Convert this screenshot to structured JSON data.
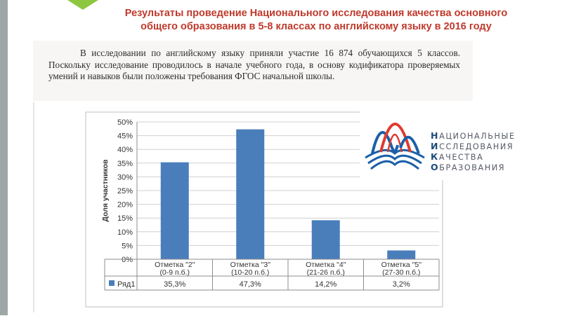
{
  "slide": {
    "title_line1": "Результаты проведение Национального исследования качества основного",
    "title_line2": "общего образования в 5-8 классах по английскому языку в 2016 году",
    "accent_color": "#c0392b",
    "scan_text": "В исследовании по английскому языку приняли участие 16 874 обучающихся 5 классов. Поскольку исследование проводилось в начале учебного года, в основу кодификатора проверяемых умений и навыков были положены требования ФГОС начальной школы."
  },
  "logo": {
    "lines": [
      {
        "cap": "Н",
        "rest": "АЦИОНАЛЬНЫЕ"
      },
      {
        "cap": "И",
        "rest": "ССЛЕДОВАНИЯ"
      },
      {
        "cap": "К",
        "rest": "АЧЕСТВА"
      },
      {
        "cap": "О",
        "rest": "БРАЗОВАНИЯ"
      }
    ],
    "colors": {
      "blue": "#1b5fa8",
      "red": "#e03a2f",
      "grey": "#555a66"
    }
  },
  "chart_data": {
    "type": "bar",
    "title": "",
    "xlabel": "",
    "ylabel": "Доля участников",
    "ylim": [
      0,
      50
    ],
    "yticks": [
      "0%",
      "5%",
      "10%",
      "15%",
      "20%",
      "25%",
      "30%",
      "35%",
      "40%",
      "45%",
      "50%"
    ],
    "categories": [
      {
        "line1": "Отметка \"2\"",
        "line2": "(0-9 п.б.)"
      },
      {
        "line1": "Отметка \"3\"",
        "line2": "(10-20 п.б.)"
      },
      {
        "line1": "Отметка \"4\"",
        "line2": "(21-26 п.б.)"
      },
      {
        "line1": "Отметка \"5\"",
        "line2": "(27-30 п.б.)"
      }
    ],
    "series": [
      {
        "name": "Ряд1",
        "values": [
          35.3,
          47.3,
          14.2,
          3.2
        ],
        "labels": [
          "35,3%",
          "47,3%",
          "14,2%",
          "3,2%"
        ],
        "color": "#4a7ebb"
      }
    ],
    "grid": true,
    "legend": "data-table-bottom"
  }
}
